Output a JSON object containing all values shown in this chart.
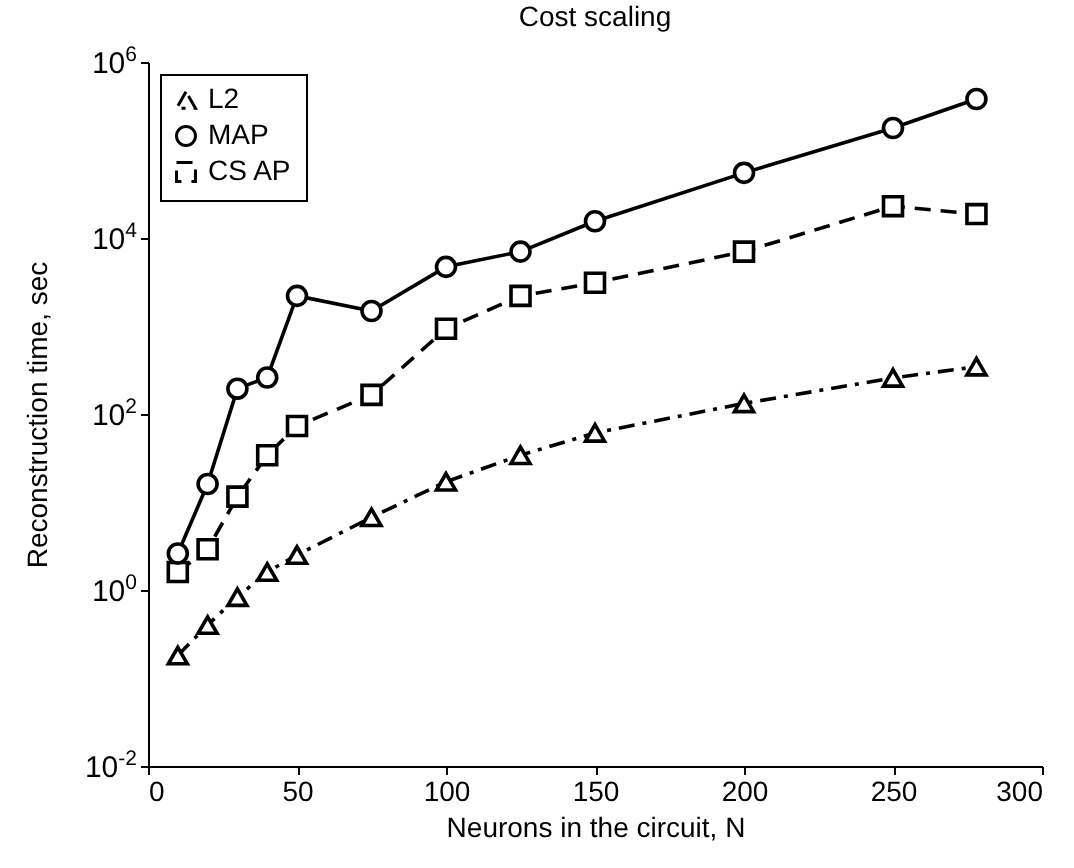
{
  "chart_data": {
    "type": "line",
    "title": "Cost scaling",
    "xlabel": "Neurons in the circuit,  N",
    "ylabel": "Reconstruction time, sec",
    "x": [
      10,
      20,
      30,
      40,
      50,
      75,
      100,
      125,
      150,
      200,
      250,
      278
    ],
    "series": [
      {
        "name": "L2",
        "color": "#000000",
        "marker": "triangle",
        "line_style": "dashdot",
        "values": [
          0.18,
          0.4,
          0.83,
          1.6,
          2.5,
          6.7,
          17,
          34,
          61,
          132,
          257,
          345
        ]
      },
      {
        "name": "MAP",
        "color": "#000000",
        "marker": "circle",
        "line_style": "solid",
        "values": [
          2.6,
          16,
          194,
          260,
          2200,
          1480,
          4700,
          7000,
          15500,
          55000,
          178000,
          380000
        ]
      },
      {
        "name": "CS AP",
        "color": "#000000",
        "marker": "square",
        "line_style": "dashed",
        "values": [
          1.6,
          2.9,
          11.5,
          34,
          73,
          165,
          930,
          2200,
          3100,
          7000,
          23000,
          18700
        ]
      }
    ],
    "log": "y",
    "xlim": [
      0,
      300
    ],
    "xticks": [
      0,
      50,
      100,
      150,
      200,
      250,
      300
    ],
    "ylim": [
      0.01,
      1000000
    ],
    "yticks": [
      {
        "value": 0.01,
        "label": "10$^{-2}$"
      },
      {
        "value": 1,
        "label": "10$^{0}$"
      },
      {
        "value": 100,
        "label": "10$^{2}$"
      },
      {
        "value": 10000,
        "label": "10$^{4}$"
      },
      {
        "value": 1000000,
        "label": "10$^{6}$"
      }
    ],
    "grid": false,
    "legend": "top left"
  }
}
